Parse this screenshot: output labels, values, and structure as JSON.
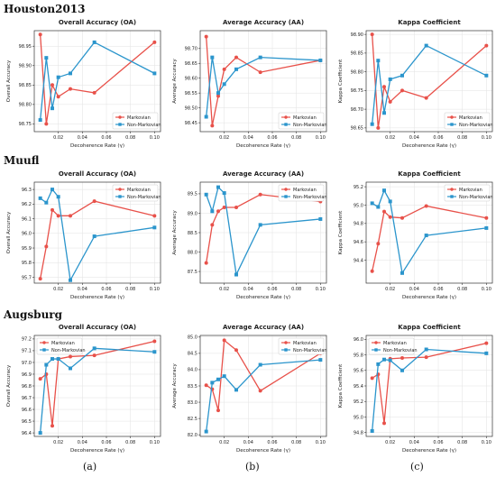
{
  "rows": [
    {
      "title": "Houston2013"
    },
    {
      "title": "Muufl"
    },
    {
      "title": "Augsburg"
    }
  ],
  "subfigure_labels": [
    "(a)",
    "(b)",
    "(c)"
  ],
  "colors": {
    "markovian": "#e8514a",
    "non_markovian": "#2b95cc"
  },
  "chart_data": [
    {
      "type": "line",
      "dataset": "Houston2013",
      "title": "Overall Accuracy (OA)",
      "xlabel": "Decoherence Rate (γ)",
      "ylabel": "Overall Accuracy",
      "xlim": [
        0,
        0.105
      ],
      "ylim": [
        98.73,
        98.99
      ],
      "xticks": [
        0.02,
        0.04,
        0.06,
        0.08,
        0.1
      ],
      "xtick_labels": [
        "0.02",
        "0.04",
        "0.06",
        "0.08",
        "0.10"
      ],
      "yticks": [
        98.75,
        98.8,
        98.85,
        98.9,
        98.95
      ],
      "ytick_labels": [
        "98.75",
        "98.80",
        "98.85",
        "98.90",
        "98.95"
      ],
      "legend": "lower-right",
      "grid": true,
      "x": [
        0.005,
        0.01,
        0.015,
        0.02,
        0.03,
        0.05,
        0.1
      ],
      "series": [
        {
          "name": "Markovian",
          "marker": "circle",
          "values": [
            98.98,
            98.75,
            98.85,
            98.82,
            98.84,
            98.83,
            98.96
          ]
        },
        {
          "name": "Non-Markovian",
          "marker": "square",
          "values": [
            98.76,
            98.92,
            98.79,
            98.87,
            98.88,
            98.96,
            98.88
          ]
        }
      ]
    },
    {
      "type": "line",
      "dataset": "Houston2013",
      "title": "Average Accuracy (AA)",
      "xlabel": "Decoherence Rate (γ)",
      "ylabel": "Average Accuracy",
      "xlim": [
        0,
        0.105
      ],
      "ylim": [
        98.42,
        98.76
      ],
      "xticks": [
        0.02,
        0.04,
        0.06,
        0.08,
        0.1
      ],
      "xtick_labels": [
        "0.02",
        "0.04",
        "0.06",
        "0.08",
        "0.10"
      ],
      "yticks": [
        98.45,
        98.5,
        98.55,
        98.6,
        98.65,
        98.7
      ],
      "ytick_labels": [
        "98.45",
        "98.50",
        "98.55",
        "98.60",
        "98.65",
        "98.70"
      ],
      "legend": "lower-right",
      "grid": true,
      "x": [
        0.005,
        0.01,
        0.015,
        0.02,
        0.03,
        0.05,
        0.1
      ],
      "series": [
        {
          "name": "Markovian",
          "marker": "circle",
          "values": [
            98.74,
            98.44,
            98.54,
            98.63,
            98.67,
            98.62,
            98.66
          ]
        },
        {
          "name": "Non-Markovian",
          "marker": "square",
          "values": [
            98.47,
            98.67,
            98.55,
            98.58,
            98.63,
            98.67,
            98.66
          ]
        }
      ]
    },
    {
      "type": "line",
      "dataset": "Houston2013",
      "title": "Kappa Coefficient",
      "xlabel": "Decoherence Rate (γ)",
      "ylabel": "Kappa Coefficient",
      "xlim": [
        0,
        0.105
      ],
      "ylim": [
        98.64,
        98.91
      ],
      "xticks": [
        0.02,
        0.04,
        0.06,
        0.08,
        0.1
      ],
      "xtick_labels": [
        "0.02",
        "0.04",
        "0.06",
        "0.08",
        "0.10"
      ],
      "yticks": [
        98.65,
        98.7,
        98.75,
        98.8,
        98.85,
        98.9
      ],
      "ytick_labels": [
        "98.65",
        "98.70",
        "98.75",
        "98.80",
        "98.85",
        "98.90"
      ],
      "legend": "lower-right",
      "grid": true,
      "x": [
        0.005,
        0.01,
        0.015,
        0.02,
        0.03,
        0.05,
        0.1
      ],
      "series": [
        {
          "name": "Markovian",
          "marker": "circle",
          "values": [
            98.9,
            98.65,
            98.76,
            98.72,
            98.75,
            98.73,
            98.87
          ]
        },
        {
          "name": "Non-Markovian",
          "marker": "square",
          "values": [
            98.66,
            98.83,
            98.69,
            98.78,
            98.79,
            98.87,
            98.79
          ]
        }
      ]
    },
    {
      "type": "line",
      "dataset": "Muufl",
      "title": "Overall Accuracy (OA)",
      "xlabel": "Decoherence Rate (γ)",
      "ylabel": "Overall Accuracy",
      "xlim": [
        0,
        0.105
      ],
      "ylim": [
        95.66,
        96.35
      ],
      "xticks": [
        0.02,
        0.04,
        0.06,
        0.08,
        0.1
      ],
      "xtick_labels": [
        "0.02",
        "0.04",
        "0.06",
        "0.08",
        "0.10"
      ],
      "yticks": [
        95.7,
        95.8,
        95.9,
        96.0,
        96.1,
        96.2,
        96.3
      ],
      "ytick_labels": [
        "95.7",
        "95.8",
        "95.9",
        "96.0",
        "96.1",
        "96.2",
        "96.3"
      ],
      "legend": "top-right",
      "grid": true,
      "x": [
        0.005,
        0.01,
        0.015,
        0.02,
        0.03,
        0.05,
        0.1
      ],
      "series": [
        {
          "name": "Markovian",
          "marker": "circle",
          "values": [
            95.69,
            95.91,
            96.16,
            96.12,
            96.12,
            96.22,
            96.12
          ]
        },
        {
          "name": "Non-Markovian",
          "marker": "square",
          "values": [
            96.24,
            96.21,
            96.3,
            96.25,
            95.68,
            95.98,
            96.04
          ]
        }
      ]
    },
    {
      "type": "line",
      "dataset": "Muufl",
      "title": "Average Accuracy (AA)",
      "xlabel": "Decoherence Rate (γ)",
      "ylabel": "Average Accuracy",
      "xlim": [
        0,
        0.105
      ],
      "ylim": [
        87.2,
        89.8
      ],
      "xticks": [
        0.02,
        0.04,
        0.06,
        0.08,
        0.1
      ],
      "xtick_labels": [
        "0.02",
        "0.04",
        "0.06",
        "0.08",
        "0.10"
      ],
      "yticks": [
        87.5,
        88.0,
        88.5,
        89.0,
        89.5
      ],
      "ytick_labels": [
        "87.5",
        "88.0",
        "88.5",
        "89.0",
        "89.5"
      ],
      "legend": "top-right",
      "grid": true,
      "x": [
        0.005,
        0.01,
        0.015,
        0.02,
        0.03,
        0.05,
        0.1
      ],
      "series": [
        {
          "name": "Markovian",
          "marker": "circle",
          "values": [
            87.72,
            88.7,
            89.05,
            89.15,
            89.15,
            89.48,
            89.3
          ]
        },
        {
          "name": "Non-Markovian",
          "marker": "square",
          "values": [
            89.48,
            89.05,
            89.67,
            89.52,
            87.42,
            88.7,
            88.85
          ]
        }
      ]
    },
    {
      "type": "line",
      "dataset": "Muufl",
      "title": "Kappa Coefficient",
      "xlabel": "Decoherence Rate (γ)",
      "ylabel": "Kappa Coefficient",
      "xlim": [
        0,
        0.105
      ],
      "ylim": [
        94.15,
        95.25
      ],
      "xticks": [
        0.02,
        0.04,
        0.06,
        0.08,
        0.1
      ],
      "xtick_labels": [
        "0.02",
        "0.04",
        "0.06",
        "0.08",
        "0.10"
      ],
      "yticks": [
        94.4,
        94.6,
        94.8,
        95.0,
        95.2
      ],
      "ytick_labels": [
        "94.4",
        "94.6",
        "94.8",
        "95.0",
        "95.2"
      ],
      "legend": "top-right",
      "grid": true,
      "x": [
        0.005,
        0.01,
        0.015,
        0.02,
        0.03,
        0.05,
        0.1
      ],
      "series": [
        {
          "name": "Markovian",
          "marker": "circle",
          "values": [
            94.28,
            94.58,
            94.93,
            94.87,
            94.86,
            94.99,
            94.86
          ]
        },
        {
          "name": "Non-Markovian",
          "marker": "square",
          "values": [
            95.02,
            94.98,
            95.16,
            95.04,
            94.26,
            94.67,
            94.75
          ]
        }
      ]
    },
    {
      "type": "line",
      "dataset": "Augsburg",
      "title": "Overall Accuracy (OA)",
      "xlabel": "Decoherence Rate (γ)",
      "ylabel": "Overall Accuracy",
      "xlim": [
        0,
        0.105
      ],
      "ylim": [
        96.37,
        97.23
      ],
      "xticks": [
        0.02,
        0.04,
        0.06,
        0.08,
        0.1
      ],
      "xtick_labels": [
        "0.02",
        "0.04",
        "0.06",
        "0.08",
        "0.10"
      ],
      "yticks": [
        96.4,
        96.5,
        96.6,
        96.7,
        96.8,
        96.9,
        97.0,
        97.1,
        97.2
      ],
      "ytick_labels": [
        "96.4",
        "96.5",
        "96.6",
        "96.7",
        "96.8",
        "96.9",
        "97.0",
        "97.1",
        "97.2"
      ],
      "legend": "top-left",
      "grid": true,
      "x": [
        0.005,
        0.01,
        0.015,
        0.02,
        0.03,
        0.05,
        0.1
      ],
      "series": [
        {
          "name": "Markovian",
          "marker": "circle",
          "values": [
            96.86,
            96.9,
            96.46,
            97.03,
            97.05,
            97.06,
            97.18
          ]
        },
        {
          "name": "Non-Markovian",
          "marker": "square",
          "values": [
            96.4,
            96.98,
            97.03,
            97.03,
            96.95,
            97.12,
            97.09
          ]
        }
      ]
    },
    {
      "type": "line",
      "dataset": "Augsburg",
      "title": "Average Accuracy (AA)",
      "xlabel": "Decoherence Rate (γ)",
      "ylabel": "Average Accuracy",
      "xlim": [
        0,
        0.105
      ],
      "ylim": [
        81.95,
        85.05
      ],
      "xticks": [
        0.02,
        0.04,
        0.06,
        0.08,
        0.1
      ],
      "xtick_labels": [
        "0.02",
        "0.04",
        "0.06",
        "0.08",
        "0.10"
      ],
      "yticks": [
        82.0,
        82.5,
        83.0,
        83.5,
        84.0,
        84.5,
        85.0
      ],
      "ytick_labels": [
        "82.0",
        "82.5",
        "83.0",
        "83.5",
        "84.0",
        "84.5",
        "85.0"
      ],
      "legend": "top-right",
      "grid": true,
      "x": [
        0.005,
        0.01,
        0.015,
        0.02,
        0.03,
        0.05,
        0.1
      ],
      "series": [
        {
          "name": "Markovian",
          "marker": "circle",
          "values": [
            83.52,
            83.4,
            82.75,
            84.9,
            84.6,
            83.35,
            84.5
          ]
        },
        {
          "name": "Non-Markovian",
          "marker": "square",
          "values": [
            82.1,
            83.6,
            83.7,
            83.8,
            83.38,
            84.15,
            84.3
          ]
        }
      ]
    },
    {
      "type": "line",
      "dataset": "Augsburg",
      "title": "Kappa Coefficient",
      "xlabel": "Decoherence Rate (γ)",
      "ylabel": "Kappa Coefficient",
      "xlim": [
        0,
        0.105
      ],
      "ylim": [
        94.75,
        96.05
      ],
      "xticks": [
        0.02,
        0.04,
        0.06,
        0.08,
        0.1
      ],
      "xtick_labels": [
        "0.02",
        "0.04",
        "0.06",
        "0.08",
        "0.10"
      ],
      "yticks": [
        94.8,
        95.0,
        95.2,
        95.4,
        95.6,
        95.8,
        96.0
      ],
      "ytick_labels": [
        "94.8",
        "95.0",
        "95.2",
        "95.4",
        "95.6",
        "95.8",
        "96.0"
      ],
      "legend": "top-left",
      "grid": true,
      "x": [
        0.005,
        0.01,
        0.015,
        0.02,
        0.03,
        0.05,
        0.1
      ],
      "series": [
        {
          "name": "Markovian",
          "marker": "circle",
          "values": [
            95.5,
            95.55,
            94.92,
            95.75,
            95.76,
            95.77,
            95.95
          ]
        },
        {
          "name": "Non-Markovian",
          "marker": "square",
          "values": [
            94.82,
            95.68,
            95.74,
            95.73,
            95.6,
            95.87,
            95.82
          ]
        }
      ]
    }
  ]
}
